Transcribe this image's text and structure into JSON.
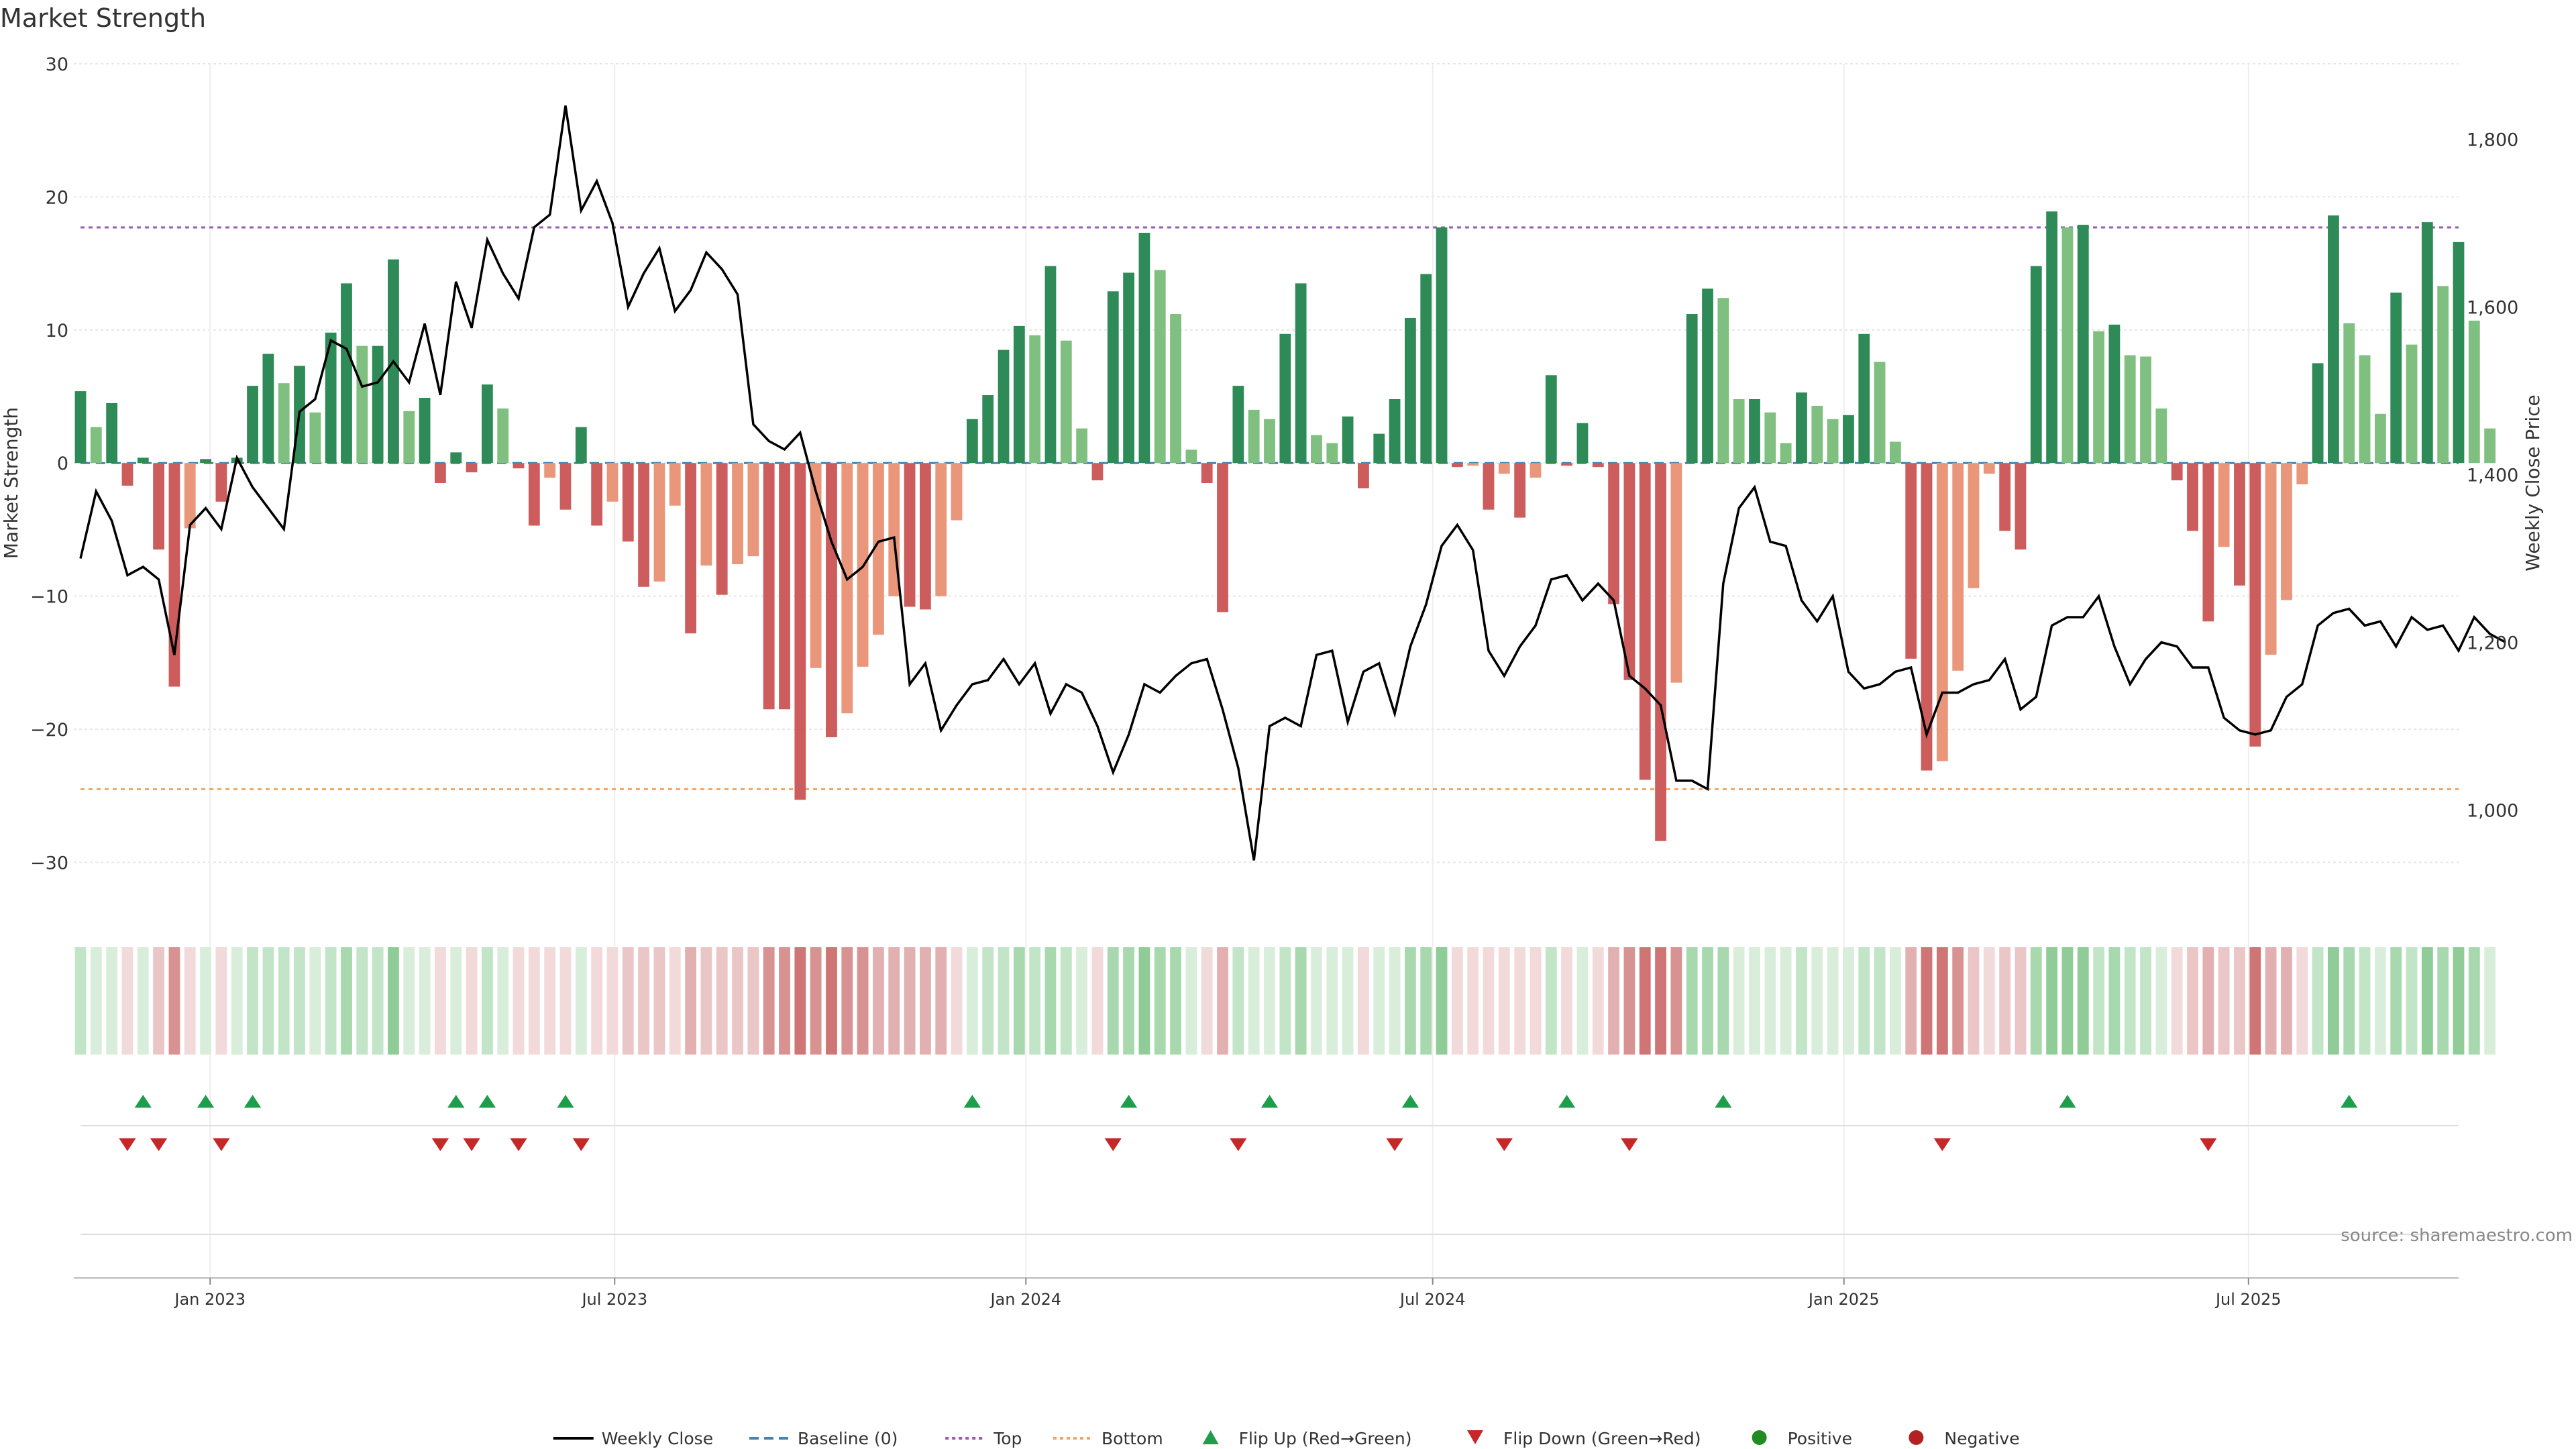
{
  "chart_data": {
    "type": "bar",
    "title": "Market Strength",
    "ylabel": "Market Strength",
    "y2label": "Weekly Close Price",
    "ylim": [
      -33,
      30
    ],
    "y2lim": [
      890,
      1890
    ],
    "yticks": [
      30,
      20,
      10,
      0,
      -10,
      -20,
      -30
    ],
    "y2ticks": [
      "1,000",
      "1,200",
      "1,400",
      "1,600",
      "1,800"
    ],
    "y2tick_values": [
      1000,
      1200,
      1400,
      1600,
      1800
    ],
    "x_start": "2022-11-01",
    "x_end": "2025-10-03",
    "xtick_labels": [
      "Jan 2023",
      "Jul 2023",
      "Jan 2024",
      "Jul 2024",
      "Jan 2025",
      "Jul 2025"
    ],
    "xtick_dates": [
      "2023-01-01",
      "2023-07-01",
      "2024-01-01",
      "2024-07-01",
      "2025-01-01",
      "2025-07-01"
    ],
    "week_start": "2022-11-04",
    "reference_lines": {
      "top": 17.7,
      "bottom": -24.5,
      "baseline": 0
    },
    "strength": [
      5.4,
      2.7,
      4.5,
      -1.7,
      0.4,
      -6.5,
      -16.8,
      -4.9,
      0.3,
      -2.9,
      0.4,
      5.8,
      8.2,
      6.0,
      7.3,
      3.8,
      9.8,
      13.5,
      8.8,
      8.8,
      15.3,
      3.9,
      4.9,
      -1.5,
      0.8,
      -0.7,
      5.9,
      4.1,
      -0.4,
      -4.7,
      -1.1,
      -3.5,
      2.7,
      -4.7,
      -2.9,
      -5.9,
      -9.3,
      -8.9,
      -3.2,
      -12.8,
      -7.7,
      -9.9,
      -7.6,
      -7.0,
      -18.5,
      -18.5,
      -25.3,
      -15.4,
      -20.6,
      -18.8,
      -15.3,
      -12.9,
      -10.0,
      -10.8,
      -11.0,
      -10.0,
      -4.3,
      3.3,
      5.1,
      8.5,
      10.3,
      9.6,
      14.8,
      9.2,
      2.6,
      -1.3,
      12.9,
      14.3,
      17.3,
      14.5,
      11.2,
      1.0,
      -1.5,
      -11.2,
      5.8,
      4.0,
      3.3,
      9.7,
      13.5,
      2.1,
      1.5,
      3.5,
      -1.9,
      2.2,
      4.8,
      10.9,
      14.2,
      17.7,
      -0.3,
      -0.2,
      -3.5,
      -0.8,
      -4.1,
      -1.1,
      6.6,
      -0.2,
      3.0,
      -0.3,
      -10.6,
      -16.3,
      -23.8,
      -28.4,
      -16.5,
      11.2,
      13.1,
      12.4,
      4.8,
      4.8,
      3.8,
      1.5,
      5.3,
      4.3,
      3.3,
      3.6,
      9.7,
      7.6,
      1.6,
      -14.7,
      -23.1,
      -22.4,
      -15.6,
      -9.4,
      -0.8,
      -5.1,
      -6.5,
      14.8,
      18.9,
      17.7,
      17.9,
      9.9,
      10.4,
      8.1,
      8.0,
      4.1,
      -1.3,
      -5.1,
      -11.9,
      -6.3,
      -9.2,
      -21.3,
      -14.4,
      -10.3,
      -1.6,
      7.5,
      18.6,
      10.5,
      8.1,
      3.7,
      12.8,
      8.9,
      18.1,
      13.3,
      16.6,
      10.7,
      2.6
    ],
    "price": [
      1300,
      1380,
      1345,
      1280,
      1290,
      1275,
      1185,
      1340,
      1360,
      1335,
      1420,
      1385,
      1360,
      1335,
      1475,
      1490,
      1560,
      1550,
      1505,
      1510,
      1535,
      1510,
      1580,
      1495,
      1630,
      1575,
      1680,
      1640,
      1610,
      1695,
      1710,
      1840,
      1715,
      1750,
      1700,
      1600,
      1640,
      1670,
      1595,
      1620,
      1665,
      1645,
      1615,
      1460,
      1440,
      1430,
      1450,
      1380,
      1320,
      1275,
      1290,
      1320,
      1325,
      1150,
      1175,
      1095,
      1125,
      1150,
      1155,
      1180,
      1150,
      1175,
      1115,
      1150,
      1140,
      1100,
      1045,
      1090,
      1150,
      1140,
      1160,
      1175,
      1180,
      1120,
      1050,
      940,
      1100,
      1110,
      1100,
      1185,
      1190,
      1105,
      1165,
      1175,
      1115,
      1195,
      1245,
      1315,
      1340,
      1310,
      1190,
      1160,
      1195,
      1220,
      1275,
      1280,
      1250,
      1270,
      1250,
      1160,
      1145,
      1125,
      1035,
      1035,
      1025,
      1270,
      1360,
      1385,
      1320,
      1315,
      1250,
      1225,
      1255,
      1165,
      1145,
      1150,
      1165,
      1170,
      1090,
      1140,
      1140,
      1150,
      1155,
      1180,
      1120,
      1135,
      1220,
      1230,
      1230,
      1255,
      1195,
      1150,
      1180,
      1200,
      1195,
      1170,
      1170,
      1110,
      1095,
      1090,
      1095,
      1135,
      1150,
      1220,
      1235,
      1240,
      1220,
      1225,
      1195,
      1230,
      1215,
      1220,
      1190,
      1230,
      1210,
      1200
    ],
    "flip_up_weeks": [
      4,
      8,
      11,
      24,
      26,
      31,
      57,
      67,
      76,
      85,
      95,
      105,
      127,
      145
    ],
    "flip_down_weeks": [
      3,
      5,
      9,
      23,
      25,
      28,
      32,
      66,
      74,
      84,
      91,
      99,
      119,
      136
    ],
    "legend": [
      "Weekly Close",
      "Baseline (0)",
      "Top",
      "Bottom",
      "Flip Up (Red→Green)",
      "Flip Down (Green→Red)",
      "Positive",
      "Negative"
    ],
    "legend_placement": "bottom-center",
    "grid": true,
    "annotation": "source: sharemaestro.com",
    "colors": {
      "pos_strong": "#2e8b57",
      "pos_light": "#7fbf7f",
      "neg_strong": "#cd5c5c",
      "neg_light": "#e9967a",
      "price": "#000000",
      "baseline": "#4682b4",
      "top": "#9b59b6",
      "bottom": "#f4a460",
      "flip_up": "#1e9e4a",
      "flip_down": "#c62828",
      "positive": "#228b22",
      "negative": "#b22222"
    }
  }
}
